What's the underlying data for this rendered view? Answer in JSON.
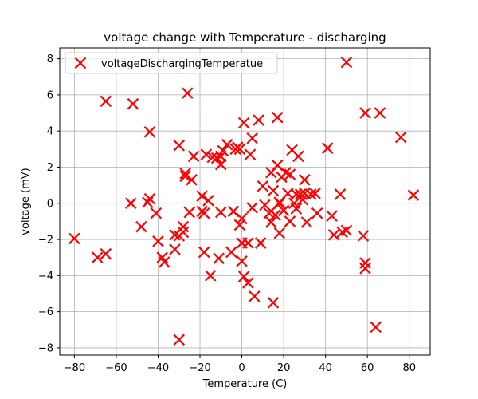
{
  "chart_data": {
    "type": "scatter",
    "title": "voltage change with Temperature  - discharging",
    "xlabel": "Temperature (C)",
    "ylabel": "voltage (mV)",
    "xlim": [
      -87,
      90
    ],
    "ylim": [
      -8.4,
      8.6
    ],
    "xticks": [
      -80,
      -60,
      -40,
      -20,
      0,
      20,
      40,
      60,
      80
    ],
    "yticks": [
      -8,
      -6,
      -4,
      -2,
      0,
      2,
      4,
      6,
      8
    ],
    "grid": true,
    "legend": "top-left",
    "marker": "x",
    "series": [
      {
        "name": "voltageDischargingTemperatue",
        "color": "#ff0000",
        "points": [
          [
            -80,
            -1.95
          ],
          [
            -69,
            -3.0
          ],
          [
            -65,
            -2.8
          ],
          [
            -65,
            5.65
          ],
          [
            -52,
            5.5
          ],
          [
            -53,
            0.0
          ],
          [
            -48,
            -1.3
          ],
          [
            -45,
            0.05
          ],
          [
            -44,
            0.25
          ],
          [
            -44,
            3.95
          ],
          [
            -41,
            -0.55
          ],
          [
            -40,
            -2.1
          ],
          [
            -38,
            -3.0
          ],
          [
            -37,
            -3.25
          ],
          [
            -32,
            -2.55
          ],
          [
            -32,
            -1.75
          ],
          [
            -30,
            -1.8
          ],
          [
            -30,
            3.2
          ],
          [
            -30,
            -7.55
          ],
          [
            -28,
            -1.6
          ],
          [
            -28,
            -1.3
          ],
          [
            -27,
            1.5
          ],
          [
            -27,
            1.65
          ],
          [
            -26,
            6.1
          ],
          [
            -25,
            -0.5
          ],
          [
            -24,
            1.3
          ],
          [
            -23,
            2.6
          ],
          [
            -19,
            0.4
          ],
          [
            -19,
            -0.45
          ],
          [
            -18,
            -0.55
          ],
          [
            -18,
            -2.7
          ],
          [
            -17,
            2.7
          ],
          [
            -16,
            0.15
          ],
          [
            -15,
            -4.0
          ],
          [
            -14,
            2.55
          ],
          [
            -12,
            2.5
          ],
          [
            -11,
            -3.05
          ],
          [
            -10,
            -0.5
          ],
          [
            -10,
            2.15
          ],
          [
            -10,
            2.6
          ],
          [
            -9,
            2.9
          ],
          [
            -7,
            3.25
          ],
          [
            -5,
            -2.7
          ],
          [
            -4,
            -0.45
          ],
          [
            -3,
            3.0
          ],
          [
            -2,
            3.1
          ],
          [
            -1,
            3.0
          ],
          [
            -1,
            -1.2
          ],
          [
            0,
            -2.2
          ],
          [
            0,
            -0.85
          ],
          [
            0,
            -3.2
          ],
          [
            1,
            4.45
          ],
          [
            1,
            -4.05
          ],
          [
            3,
            -4.4
          ],
          [
            3,
            -2.2
          ],
          [
            4,
            2.7
          ],
          [
            5,
            -0.25
          ],
          [
            5,
            3.6
          ],
          [
            6,
            -5.15
          ],
          [
            8,
            4.6
          ],
          [
            9,
            -2.2
          ],
          [
            10,
            0.95
          ],
          [
            11,
            -0.1
          ],
          [
            13,
            -0.55
          ],
          [
            14,
            -1.05
          ],
          [
            14,
            1.7
          ],
          [
            15,
            0.7
          ],
          [
            15,
            -5.5
          ],
          [
            16,
            -0.65
          ],
          [
            17,
            2.1
          ],
          [
            17,
            4.75
          ],
          [
            18,
            0.0
          ],
          [
            18,
            0.05
          ],
          [
            18,
            -1.65
          ],
          [
            19,
            1.45
          ],
          [
            20,
            -0.4
          ],
          [
            21,
            1.7
          ],
          [
            22,
            0.55
          ],
          [
            23,
            -1.0
          ],
          [
            23,
            1.6
          ],
          [
            24,
            2.95
          ],
          [
            25,
            0.0
          ],
          [
            26,
            -0.3
          ],
          [
            26,
            0.5
          ],
          [
            27,
            2.6
          ],
          [
            28,
            0.5
          ],
          [
            29,
            0.2
          ],
          [
            30,
            1.3
          ],
          [
            30,
            0.55
          ],
          [
            31,
            -1.05
          ],
          [
            33,
            0.5
          ],
          [
            35,
            0.55
          ],
          [
            36,
            -0.55
          ],
          [
            41,
            3.05
          ],
          [
            43,
            -0.7
          ],
          [
            44,
            -1.75
          ],
          [
            47,
            0.5
          ],
          [
            48,
            -1.6
          ],
          [
            50,
            -1.5
          ],
          [
            50,
            7.8
          ],
          [
            58,
            -1.8
          ],
          [
            59,
            -3.3
          ],
          [
            59,
            -3.6
          ],
          [
            59,
            5.0
          ],
          [
            64,
            -6.85
          ],
          [
            66,
            5.0
          ],
          [
            76,
            3.65
          ],
          [
            82,
            0.45
          ]
        ]
      }
    ]
  }
}
